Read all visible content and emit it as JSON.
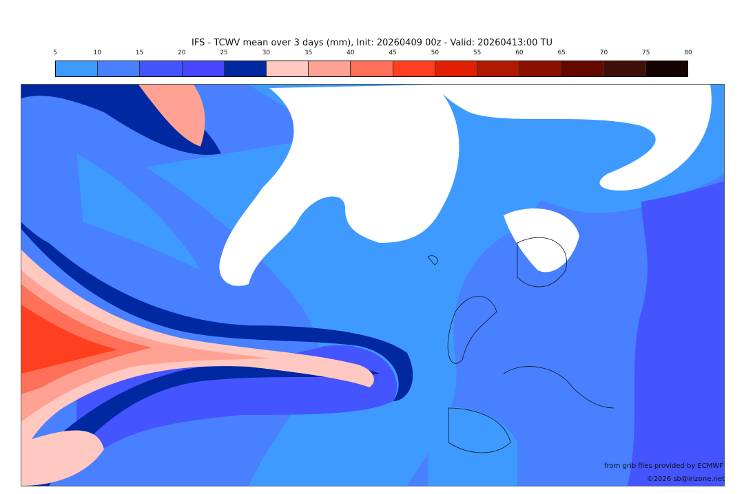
{
  "title": "IFS - TCWV mean over 3 days (mm), Init: 20260409 00z - Valid: 20260413:00 TU",
  "colorbar": {
    "ticks": [
      "5",
      "10",
      "15",
      "20",
      "25",
      "30",
      "35",
      "40",
      "45",
      "50",
      "55",
      "60",
      "65",
      "70",
      "75",
      "80"
    ],
    "colors": [
      "#3f9aff",
      "#4880ff",
      "#4455ff",
      "#4646ff",
      "#0028a0",
      "#ffc8c0",
      "#ffa294",
      "#ff7058",
      "#ff4020",
      "#e02000",
      "#b01a00",
      "#8c1000",
      "#640800",
      "#401008",
      "#160200"
    ]
  },
  "credits": {
    "source": "from grib files provided by ECMWF",
    "copyright": "©2026 sb@irizone.net"
  }
}
